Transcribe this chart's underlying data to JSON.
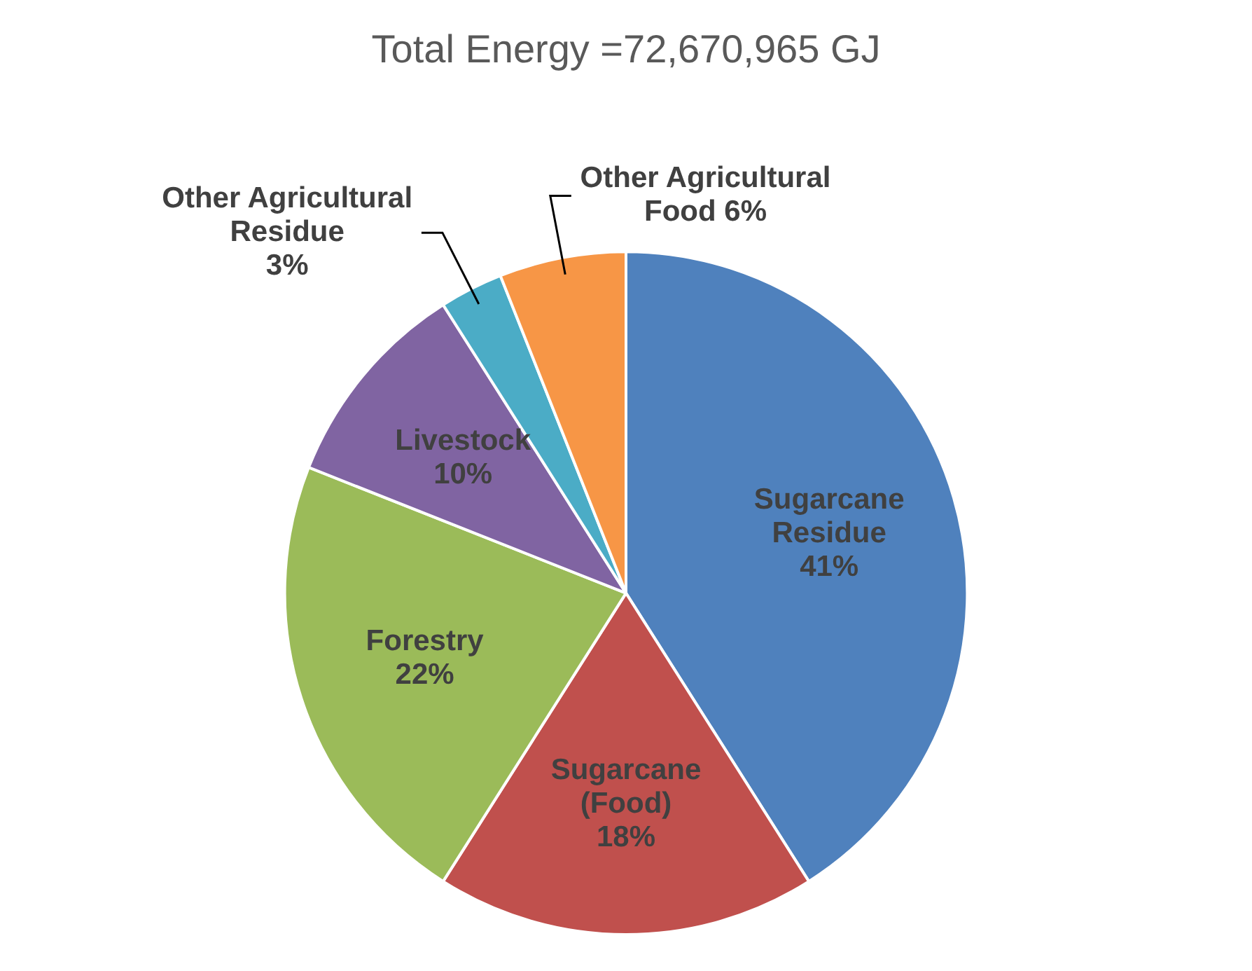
{
  "chart_data": {
    "type": "pie",
    "title": "Total Energy =72,670,965 GJ",
    "categories": [
      "Sugarcane Residue",
      "Sugarcane (Food)",
      "Forestry",
      "Livestock",
      "Other Agricultural Residue",
      "Other Agricultural Food"
    ],
    "values": [
      41,
      18,
      22,
      10,
      3,
      6
    ],
    "colors": [
      "#4f81bd",
      "#c0504d",
      "#9bbb59",
      "#8064a2",
      "#4bacc6",
      "#f79646"
    ],
    "value_labels": [
      "41%",
      "18%",
      "22%",
      "10%",
      "3%",
      "6%"
    ],
    "legend": false
  }
}
